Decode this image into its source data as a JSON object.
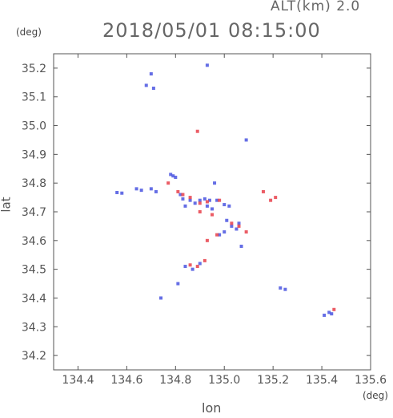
{
  "header": {
    "altitude": "ALT(km) 2.0",
    "timestamp": "2018/05/01 08:15:00"
  },
  "chart_data": {
    "type": "scatter",
    "title": "2018/05/01 08:15:00",
    "xlabel": "lon",
    "ylabel": "lat",
    "x_unit": "(deg)",
    "y_unit": "(deg)",
    "xlim": [
      134.3,
      135.6
    ],
    "ylim": [
      34.15,
      35.25
    ],
    "x_ticks": [
      "134.4",
      "134.6",
      "134.8",
      "135.0",
      "135.2",
      "135.4",
      "135.6"
    ],
    "y_ticks": [
      "35.2",
      "35.1",
      "35.0",
      "34.9",
      "34.8",
      "34.7",
      "34.6",
      "34.5",
      "34.4",
      "34.3",
      "34.2"
    ],
    "grid": false,
    "colors": {
      "positive": "#e8404a",
      "negative": "#4a55e0",
      "axis": "#555555"
    },
    "series": [
      {
        "color": "#4a55e0",
        "points": [
          [
            134.56,
            34.767
          ],
          [
            134.58,
            34.765
          ],
          [
            134.64,
            34.78
          ],
          [
            134.66,
            34.775
          ],
          [
            134.7,
            34.78
          ],
          [
            134.72,
            34.77
          ],
          [
            134.78,
            34.83
          ],
          [
            134.79,
            34.825
          ],
          [
            134.8,
            34.82
          ],
          [
            134.82,
            34.76
          ],
          [
            134.83,
            34.745
          ],
          [
            134.84,
            34.72
          ],
          [
            134.86,
            34.74
          ],
          [
            134.88,
            34.73
          ],
          [
            134.9,
            34.74
          ],
          [
            134.92,
            34.745
          ],
          [
            134.94,
            34.74
          ],
          [
            134.93,
            34.72
          ],
          [
            134.95,
            34.71
          ],
          [
            134.97,
            34.74
          ],
          [
            135.0,
            34.725
          ],
          [
            135.02,
            34.72
          ],
          [
            135.01,
            34.67
          ],
          [
            135.03,
            34.65
          ],
          [
            135.05,
            34.64
          ],
          [
            135.06,
            34.66
          ],
          [
            135.0,
            34.63
          ],
          [
            134.98,
            34.62
          ],
          [
            135.07,
            34.58
          ],
          [
            135.09,
            34.95
          ],
          [
            134.93,
            35.21
          ],
          [
            134.7,
            35.18
          ],
          [
            134.68,
            35.14
          ],
          [
            134.71,
            35.13
          ],
          [
            134.74,
            34.4
          ],
          [
            134.81,
            34.45
          ],
          [
            134.84,
            34.51
          ],
          [
            134.87,
            34.5
          ],
          [
            134.9,
            34.52
          ],
          [
            134.96,
            34.8
          ],
          [
            135.23,
            34.435
          ],
          [
            135.25,
            34.43
          ],
          [
            135.41,
            34.34
          ],
          [
            135.43,
            34.35
          ],
          [
            135.44,
            34.345
          ]
        ]
      },
      {
        "color": "#e8404a",
        "points": [
          [
            134.77,
            34.8
          ],
          [
            134.81,
            34.77
          ],
          [
            134.83,
            34.76
          ],
          [
            134.86,
            34.75
          ],
          [
            134.9,
            34.73
          ],
          [
            134.93,
            34.735
          ],
          [
            134.98,
            34.74
          ],
          [
            134.9,
            34.7
          ],
          [
            134.95,
            34.69
          ],
          [
            135.03,
            34.66
          ],
          [
            135.06,
            34.65
          ],
          [
            134.89,
            34.98
          ],
          [
            135.16,
            34.77
          ],
          [
            135.21,
            34.75
          ],
          [
            135.19,
            34.74
          ],
          [
            134.86,
            34.515
          ],
          [
            134.89,
            34.51
          ],
          [
            134.92,
            34.53
          ],
          [
            135.45,
            34.36
          ],
          [
            134.97,
            34.62
          ],
          [
            135.09,
            34.63
          ],
          [
            134.93,
            34.6
          ]
        ]
      }
    ]
  }
}
